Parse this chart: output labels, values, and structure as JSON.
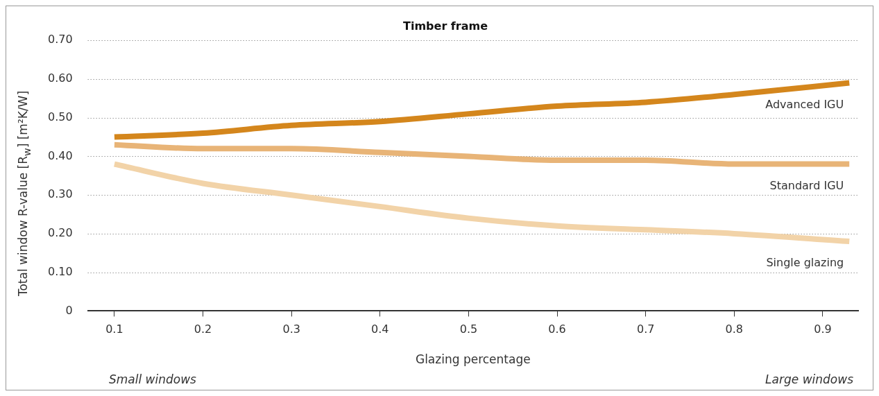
{
  "chart_data": {
    "type": "line",
    "title": "Timber frame",
    "xlabel": "Glazing percentage",
    "ylabel": "Total window R-value [R$_{w}$] [m²K/W]",
    "x": [
      0.1,
      0.2,
      0.3,
      0.4,
      0.5,
      0.6,
      0.7,
      0.8,
      0.93
    ],
    "series": [
      {
        "name": "Advanced IGU",
        "color": "#d4861c",
        "values": [
          0.45,
          0.46,
          0.48,
          0.49,
          0.51,
          0.53,
          0.54,
          0.56,
          0.59
        ]
      },
      {
        "name": "Standard IGU",
        "color": "#e8b477",
        "values": [
          0.43,
          0.42,
          0.42,
          0.41,
          0.4,
          0.39,
          0.39,
          0.38,
          0.38
        ]
      },
      {
        "name": "Single glazing",
        "color": "#f2d3a8",
        "values": [
          0.38,
          0.33,
          0.3,
          0.27,
          0.24,
          0.22,
          0.21,
          0.2,
          0.18
        ]
      }
    ],
    "xlim": [
      0.07,
      0.94
    ],
    "xticks": [
      0.1,
      0.2,
      0.3,
      0.4,
      0.5,
      0.6,
      0.7,
      0.8,
      0.9
    ],
    "ylim": [
      0,
      0.7
    ],
    "yticks": [
      {
        "value": 0,
        "label": "0"
      },
      {
        "value": 0.1,
        "label": "0.10"
      },
      {
        "value": 0.2,
        "label": "0.20"
      },
      {
        "value": 0.3,
        "label": "0.30"
      },
      {
        "value": 0.4,
        "label": "0.40"
      },
      {
        "value": 0.5,
        "label": "0.50"
      },
      {
        "value": 0.6,
        "label": "0.60"
      },
      {
        "value": 0.7,
        "label": "0.70"
      }
    ],
    "grid": "y",
    "line_style": "solid",
    "marker": "none",
    "legend": false,
    "annotations": [
      "Small windows",
      "Large windows"
    ]
  }
}
